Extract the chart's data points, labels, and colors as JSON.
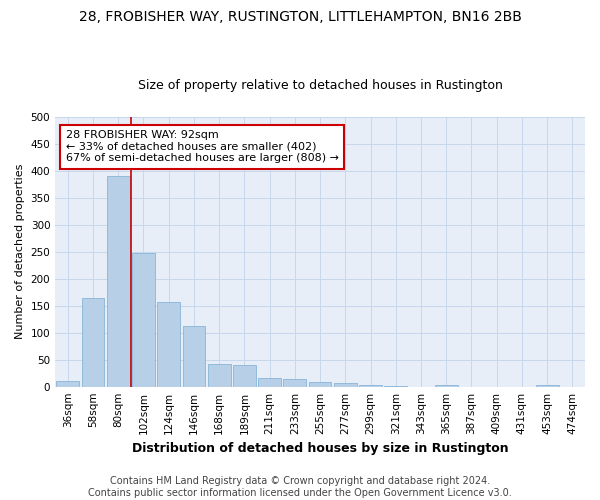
{
  "title1": "28, FROBISHER WAY, RUSTINGTON, LITTLEHAMPTON, BN16 2BB",
  "title2": "Size of property relative to detached houses in Rustington",
  "xlabel": "Distribution of detached houses by size in Rustington",
  "ylabel": "Number of detached properties",
  "footer1": "Contains HM Land Registry data © Crown copyright and database right 2024.",
  "footer2": "Contains public sector information licensed under the Open Government Licence v3.0.",
  "bar_labels": [
    "36sqm",
    "58sqm",
    "80sqm",
    "102sqm",
    "124sqm",
    "146sqm",
    "168sqm",
    "189sqm",
    "211sqm",
    "233sqm",
    "255sqm",
    "277sqm",
    "299sqm",
    "321sqm",
    "343sqm",
    "365sqm",
    "387sqm",
    "409sqm",
    "431sqm",
    "453sqm",
    "474sqm"
  ],
  "bar_values": [
    11,
    165,
    390,
    247,
    156,
    113,
    42,
    40,
    17,
    15,
    8,
    6,
    4,
    2,
    0,
    3,
    0,
    0,
    0,
    4,
    0
  ],
  "bar_color": "#b8cfe8",
  "bar_edge_color": "#7aadd4",
  "vline_color": "#cc0000",
  "vline_x_index": 2,
  "annotation_text": "28 FROBISHER WAY: 92sqm\n← 33% of detached houses are smaller (402)\n67% of semi-detached houses are larger (808) →",
  "annotation_box_color": "#ffffff",
  "annotation_box_edge": "#cc0000",
  "ylim": [
    0,
    500
  ],
  "yticks": [
    0,
    50,
    100,
    150,
    200,
    250,
    300,
    350,
    400,
    450,
    500
  ],
  "grid_color": "#c8d8ec",
  "bg_color": "#e8eef8",
  "title1_fontsize": 10,
  "title2_fontsize": 9,
  "xlabel_fontsize": 9,
  "ylabel_fontsize": 8,
  "tick_fontsize": 7.5,
  "annotation_fontsize": 8,
  "footer_fontsize": 7
}
